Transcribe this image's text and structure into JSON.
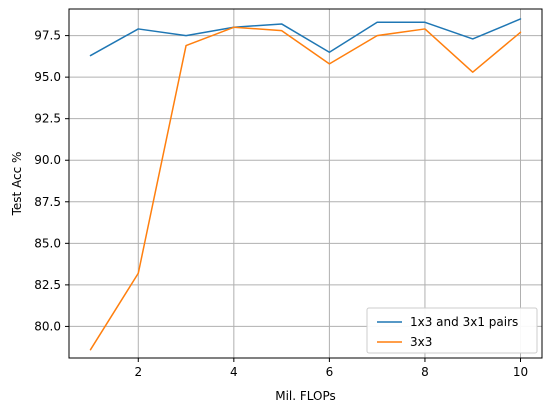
{
  "chart_data": {
    "type": "line",
    "title": "",
    "xlabel": "Mil. FLOPs",
    "ylabel": "Test Acc %",
    "x": [
      1,
      2,
      3,
      4,
      5,
      6,
      7,
      8,
      9,
      10
    ],
    "xlim": [
      0.55,
      10.45
    ],
    "ylim": [
      78.1,
      99.1
    ],
    "x_ticks": [
      2,
      4,
      6,
      8,
      10
    ],
    "y_ticks": [
      80.0,
      82.5,
      85.0,
      87.5,
      90.0,
      92.5,
      95.0,
      97.5
    ],
    "x_tick_labels": [
      "2",
      "4",
      "6",
      "8",
      "10"
    ],
    "y_tick_labels": [
      "80.0",
      "82.5",
      "85.0",
      "87.5",
      "90.0",
      "92.5",
      "95.0",
      "97.5"
    ],
    "grid": true,
    "legend_position": "lower-right",
    "series": [
      {
        "name": "1x3 and 3x1 pairs",
        "color": "#1f77b4",
        "values": [
          96.3,
          97.9,
          97.5,
          98.0,
          98.2,
          96.5,
          98.3,
          98.3,
          97.3,
          98.5
        ]
      },
      {
        "name": "3x3",
        "color": "#ff7f0e",
        "values": [
          78.6,
          83.2,
          96.9,
          98.0,
          97.8,
          95.8,
          97.5,
          97.9,
          95.3,
          97.7
        ]
      }
    ]
  }
}
